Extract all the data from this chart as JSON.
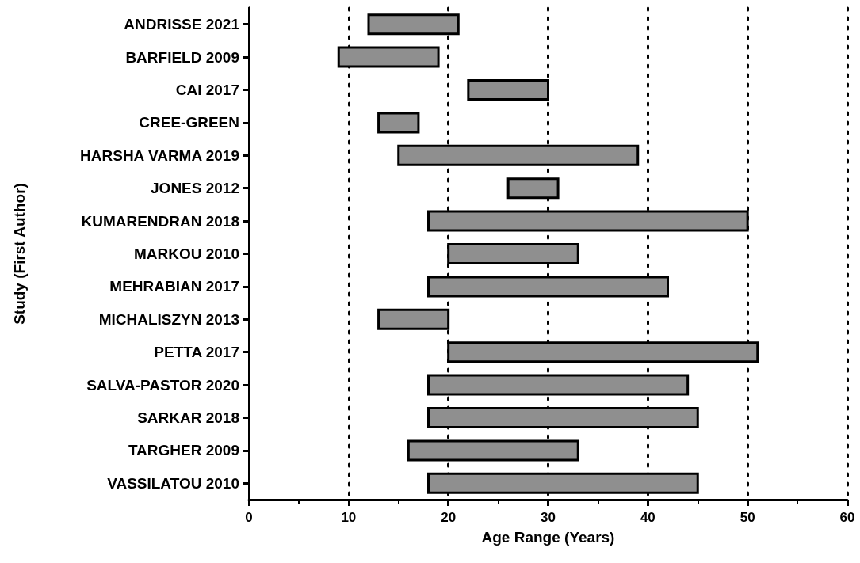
{
  "chart_data": {
    "type": "bar",
    "orientation": "horizontal",
    "xlabel": "Age Range (Years)",
    "ylabel": "Study (First Author)",
    "categories": [
      "ANDRISSE 2021",
      "BARFIELD 2009",
      "CAI 2017",
      "CREE-GREEN",
      "HARSHA VARMA 2019",
      "JONES 2012",
      "KUMARENDRAN 2018",
      "MARKOU 2010",
      "MEHRABIAN 2017",
      "MICHALISZYN 2013",
      "PETTA 2017",
      "SALVA-PASTOR 2020",
      "SARKAR 2018",
      "TARGHER 2009",
      "VASSILATOU 2010"
    ],
    "base": [
      12,
      9,
      22,
      13,
      15,
      26,
      18,
      20,
      18,
      13,
      20,
      18,
      18,
      16,
      18
    ],
    "values": [
      9,
      10,
      8,
      4,
      24,
      5,
      32,
      13,
      24,
      7,
      31,
      26,
      27,
      17,
      27
    ],
    "color": "#8f8f8f",
    "xlim": [
      0,
      60
    ],
    "xticks": [
      0,
      10,
      20,
      30,
      40,
      50,
      60
    ],
    "grid": "x"
  }
}
